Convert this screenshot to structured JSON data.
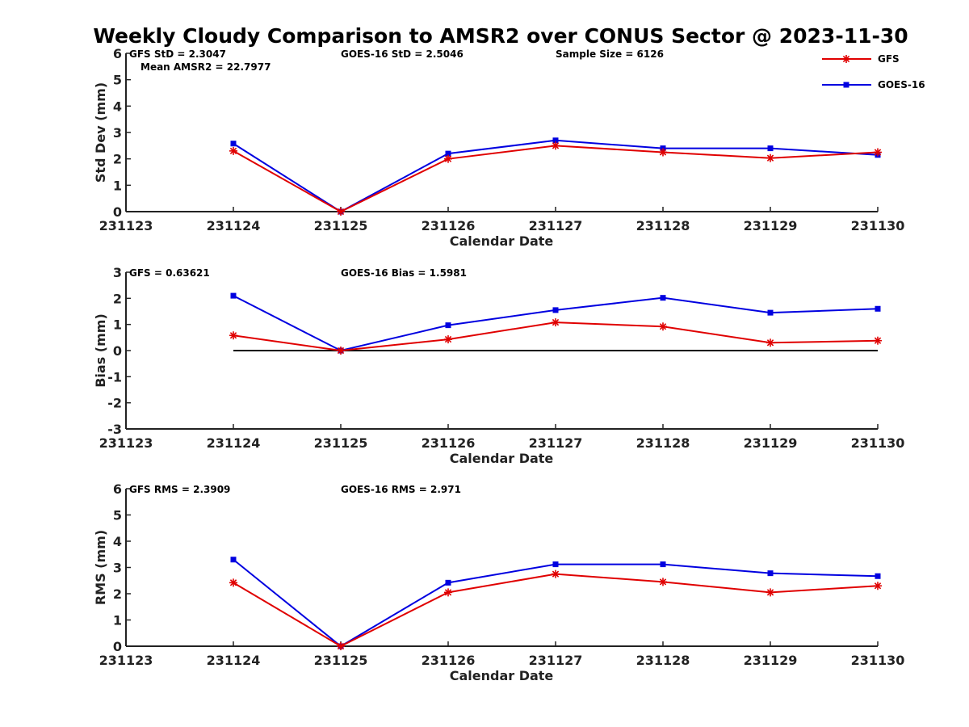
{
  "title": "Weekly Cloudy Comparison to AMSR2 over CONUS Sector @ 2023-11-30",
  "legend": {
    "placement": "top-right",
    "items": [
      {
        "name": "GFS",
        "color": "#e00000",
        "marker": "asterisk"
      },
      {
        "name": "GOES-16",
        "color": "#0000e0",
        "marker": "square"
      }
    ]
  },
  "chart_data": [
    {
      "type": "line",
      "title": "",
      "xlabel": "Calendar Date",
      "ylabel": "Std Dev (mm)",
      "x_ticks": [
        "231123",
        "231124",
        "231125",
        "231126",
        "231127",
        "231128",
        "231129",
        "231130"
      ],
      "ylim": [
        0,
        6
      ],
      "y_ticks": [
        "0",
        "1",
        "2",
        "3",
        "4",
        "5",
        "6"
      ],
      "zero_line": false,
      "stats": [
        {
          "text": "GFS StD = 2.3047",
          "pos": "a"
        },
        {
          "text": "GOES-16 StD = 2.5046",
          "pos": "b"
        },
        {
          "text": "Sample Size = 6126",
          "pos": "c"
        },
        {
          "text": "Mean AMSR2 = 22.7977",
          "pos": "d"
        }
      ],
      "x": [
        "231124",
        "231125",
        "231126",
        "231127",
        "231128",
        "231129",
        "231130"
      ],
      "series": [
        {
          "name": "GFS",
          "values": [
            2.3,
            0.0,
            2.0,
            2.5,
            2.25,
            2.03,
            2.25
          ]
        },
        {
          "name": "GOES-16",
          "values": [
            2.58,
            0.0,
            2.2,
            2.7,
            2.4,
            2.4,
            2.15
          ]
        }
      ]
    },
    {
      "type": "line",
      "title": "",
      "xlabel": "Calendar Date",
      "ylabel": "Bias (mm)",
      "x_ticks": [
        "231123",
        "231124",
        "231125",
        "231126",
        "231127",
        "231128",
        "231129",
        "231130"
      ],
      "ylim": [
        -3,
        3
      ],
      "y_ticks": [
        "-3",
        "-2",
        "-1",
        "0",
        "1",
        "2",
        "3"
      ],
      "zero_line": true,
      "stats": [
        {
          "text": "GFS = 0.63621",
          "pos": "a"
        },
        {
          "text": "GOES-16 Bias  = 1.5981",
          "pos": "b"
        }
      ],
      "x": [
        "231124",
        "231125",
        "231126",
        "231127",
        "231128",
        "231129",
        "231130"
      ],
      "series": [
        {
          "name": "GFS",
          "values": [
            0.58,
            0.0,
            0.43,
            1.08,
            0.92,
            0.3,
            0.38
          ]
        },
        {
          "name": "GOES-16",
          "values": [
            2.1,
            0.0,
            0.97,
            1.55,
            2.02,
            1.45,
            1.6
          ]
        }
      ]
    },
    {
      "type": "line",
      "title": "",
      "xlabel": "Calendar Date",
      "ylabel": "RMS (mm)",
      "x_ticks": [
        "231123",
        "231124",
        "231125",
        "231126",
        "231127",
        "231128",
        "231129",
        "231130"
      ],
      "ylim": [
        0,
        6
      ],
      "y_ticks": [
        "0",
        "1",
        "2",
        "3",
        "4",
        "5",
        "6"
      ],
      "zero_line": false,
      "stats": [
        {
          "text": "GFS RMS = 2.3909",
          "pos": "a"
        },
        {
          "text": "GOES-16 RMS = 2.971",
          "pos": "b"
        }
      ],
      "x": [
        "231124",
        "231125",
        "231126",
        "231127",
        "231128",
        "231129",
        "231130"
      ],
      "series": [
        {
          "name": "GFS",
          "values": [
            2.42,
            0.0,
            2.05,
            2.75,
            2.45,
            2.05,
            2.3
          ]
        },
        {
          "name": "GOES-16",
          "values": [
            3.3,
            0.0,
            2.42,
            3.12,
            3.12,
            2.78,
            2.67
          ]
        }
      ]
    }
  ]
}
